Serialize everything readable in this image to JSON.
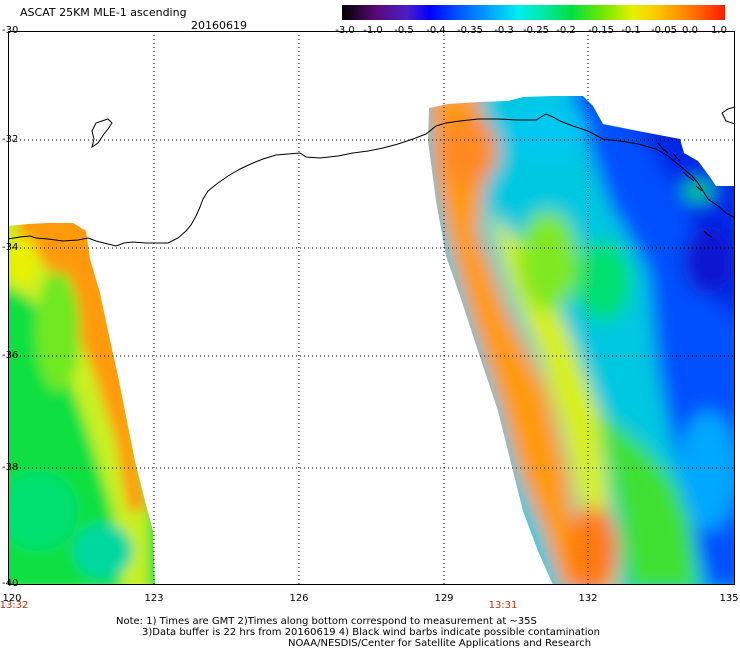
{
  "header": {
    "title": "ASCAT 25KM MLE-1 ascending",
    "date": "20160619"
  },
  "colorbar": {
    "ticks": [
      "-3.0",
      "-1.0",
      "-0.5",
      "-0.4",
      "-0.35",
      "-0.3",
      "-0.25",
      "-0.2",
      "-0.15",
      "-0.1",
      "-0.05",
      "0.0",
      "1.0"
    ]
  },
  "axes": {
    "lat_ticks": [
      "-30",
      "-32",
      "-34",
      "-36",
      "-38",
      "-40"
    ],
    "lon_ticks": [
      "120",
      "123",
      "126",
      "129",
      "132",
      "135"
    ]
  },
  "times": {
    "left_swath": "13:32",
    "right_swath": "13:31"
  },
  "notes": {
    "line1": "Note: 1) Times are GMT 2)Times along bottom correspond to measurement at ~35S",
    "line2": "3)Data buffer is 22 hrs from 20160619 4) Black wind barbs indicate possible contamination",
    "line3": "NOAA/NESDIS/Center for Satellite Applications and Research"
  }
}
